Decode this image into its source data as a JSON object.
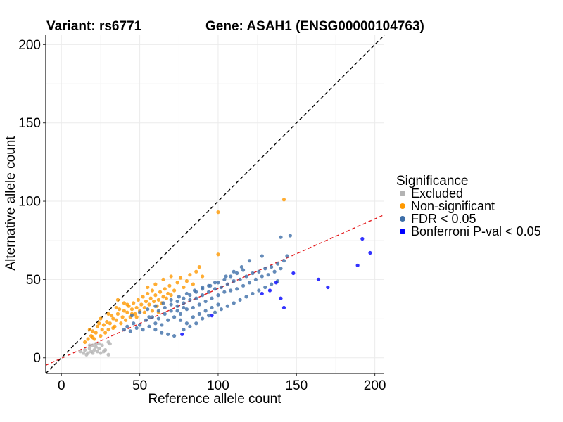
{
  "chart_data": {
    "type": "scatter",
    "title_left": "Variant: rs6771",
    "title_right": "Gene: ASAH1 (ENSG00000104763)",
    "xlabel": "Reference allele count",
    "ylabel": "Alternative allele count",
    "xlim": [
      -10,
      206
    ],
    "ylim": [
      -10,
      206
    ],
    "xticks": [
      0,
      50,
      100,
      150,
      200
    ],
    "yticks": [
      0,
      50,
      100,
      150,
      200
    ],
    "grid": true,
    "legend": {
      "title": "Significance",
      "placement": "right",
      "entries": [
        {
          "label": "Excluded",
          "color": "#b3b3b3"
        },
        {
          "label": "Non-significant",
          "color": "#ff9900"
        },
        {
          "label": "FDR < 0.05",
          "color": "#3d6ea8"
        },
        {
          "label": "Bonferroni P-val < 0.05",
          "color": "#0000ff"
        }
      ]
    },
    "reference_lines": [
      {
        "name": "identity",
        "slope": 1,
        "intercept": 0,
        "color": "#000000",
        "dash": "dashed"
      },
      {
        "name": "fit",
        "slope": 0.445,
        "intercept": -0.3,
        "color": "#e41a1c",
        "dash": "dashed"
      }
    ],
    "series": [
      {
        "name": "Excluded",
        "color": "#b3b3b3",
        "points": [
          [
            12,
            4
          ],
          [
            14,
            3
          ],
          [
            15,
            5
          ],
          [
            16,
            2
          ],
          [
            17,
            3
          ],
          [
            18,
            6
          ],
          [
            19,
            4
          ],
          [
            20,
            3
          ],
          [
            21,
            5
          ],
          [
            22,
            7
          ],
          [
            23,
            4
          ],
          [
            24,
            6
          ],
          [
            25,
            3
          ],
          [
            26,
            8
          ],
          [
            28,
            5
          ],
          [
            30,
            10
          ],
          [
            30,
            2
          ],
          [
            31,
            9
          ],
          [
            18,
            8
          ],
          [
            20,
            8
          ],
          [
            22,
            9
          ],
          [
            24,
            9
          ],
          [
            27,
            4
          ]
        ]
      },
      {
        "name": "Non-significant",
        "color": "#ff9900",
        "points": [
          [
            15,
            10
          ],
          [
            17,
            12
          ],
          [
            18,
            18
          ],
          [
            19,
            14
          ],
          [
            20,
            13
          ],
          [
            21,
            12
          ],
          [
            22,
            16
          ],
          [
            23,
            20
          ],
          [
            24,
            22
          ],
          [
            25,
            14
          ],
          [
            26,
            18
          ],
          [
            27,
            21
          ],
          [
            28,
            16
          ],
          [
            29,
            23
          ],
          [
            30,
            18
          ],
          [
            31,
            22
          ],
          [
            32,
            27
          ],
          [
            33,
            25
          ],
          [
            34,
            20
          ],
          [
            35,
            24
          ],
          [
            36,
            28
          ],
          [
            37,
            31
          ],
          [
            38,
            22
          ],
          [
            39,
            26
          ],
          [
            40,
            30
          ],
          [
            41,
            24
          ],
          [
            42,
            29
          ],
          [
            43,
            33
          ],
          [
            44,
            26
          ],
          [
            45,
            31
          ],
          [
            46,
            35
          ],
          [
            47,
            28
          ],
          [
            48,
            32
          ],
          [
            49,
            37
          ],
          [
            50,
            30
          ],
          [
            51,
            34
          ],
          [
            52,
            39
          ],
          [
            53,
            32
          ],
          [
            54,
            36
          ],
          [
            55,
            41
          ],
          [
            56,
            34
          ],
          [
            57,
            38
          ],
          [
            58,
            43
          ],
          [
            59,
            36
          ],
          [
            60,
            40
          ],
          [
            61,
            33
          ],
          [
            62,
            37
          ],
          [
            63,
            42
          ],
          [
            64,
            35
          ],
          [
            65,
            39
          ],
          [
            66,
            44
          ],
          [
            67,
            38
          ],
          [
            68,
            41
          ],
          [
            69,
            46
          ],
          [
            70,
            40
          ],
          [
            72,
            43
          ],
          [
            74,
            48
          ],
          [
            76,
            51
          ],
          [
            78,
            45
          ],
          [
            80,
            49
          ],
          [
            82,
            53
          ],
          [
            84,
            47
          ],
          [
            86,
            55
          ],
          [
            88,
            58
          ],
          [
            90,
            52
          ],
          [
            36,
            37
          ],
          [
            40,
            35
          ],
          [
            45,
            28
          ],
          [
            55,
            45
          ],
          [
            60,
            47
          ],
          [
            65,
            50
          ],
          [
            70,
            52
          ],
          [
            100,
            93
          ],
          [
            100,
            66
          ],
          [
            142,
            101
          ],
          [
            35,
            32
          ],
          [
            42,
            34
          ],
          [
            48,
            26
          ],
          [
            53,
            29
          ],
          [
            58,
            30
          ],
          [
            62,
            29
          ],
          [
            25,
            25
          ],
          [
            30,
            28
          ],
          [
            20,
            17
          ],
          [
            33,
            19
          ]
        ]
      },
      {
        "name": "FDR < 0.05",
        "color": "#3d6ea8",
        "points": [
          [
            40,
            18
          ],
          [
            42,
            20
          ],
          [
            44,
            17
          ],
          [
            46,
            22
          ],
          [
            48,
            19
          ],
          [
            50,
            21
          ],
          [
            52,
            18
          ],
          [
            54,
            24
          ],
          [
            56,
            20
          ],
          [
            58,
            26
          ],
          [
            60,
            22
          ],
          [
            62,
            25
          ],
          [
            64,
            21
          ],
          [
            66,
            28
          ],
          [
            68,
            24
          ],
          [
            70,
            30
          ],
          [
            72,
            26
          ],
          [
            74,
            33
          ],
          [
            76,
            28
          ],
          [
            78,
            35
          ],
          [
            80,
            31
          ],
          [
            82,
            37
          ],
          [
            84,
            32
          ],
          [
            86,
            38
          ],
          [
            88,
            34
          ],
          [
            90,
            40
          ],
          [
            92,
            36
          ],
          [
            94,
            42
          ],
          [
            96,
            38
          ],
          [
            98,
            44
          ],
          [
            100,
            40
          ],
          [
            102,
            45
          ],
          [
            104,
            42
          ],
          [
            106,
            47
          ],
          [
            108,
            43
          ],
          [
            110,
            49
          ],
          [
            112,
            44
          ],
          [
            114,
            50
          ],
          [
            116,
            46
          ],
          [
            118,
            52
          ],
          [
            120,
            48
          ],
          [
            122,
            54
          ],
          [
            124,
            50
          ],
          [
            126,
            55
          ],
          [
            128,
            52
          ],
          [
            130,
            57
          ],
          [
            132,
            53
          ],
          [
            134,
            58
          ],
          [
            136,
            55
          ],
          [
            138,
            60
          ],
          [
            140,
            57
          ],
          [
            142,
            62
          ],
          [
            144,
            65
          ],
          [
            146,
            78
          ],
          [
            140,
            77
          ],
          [
            128,
            65
          ],
          [
            120,
            62
          ],
          [
            115,
            58
          ],
          [
            110,
            55
          ],
          [
            105,
            52
          ],
          [
            100,
            48
          ],
          [
            95,
            46
          ],
          [
            90,
            45
          ],
          [
            85,
            43
          ],
          [
            80,
            41
          ],
          [
            75,
            39
          ],
          [
            70,
            37
          ],
          [
            65,
            35
          ],
          [
            60,
            33
          ],
          [
            55,
            31
          ],
          [
            50,
            29
          ],
          [
            45,
            27
          ],
          [
            60,
            18
          ],
          [
            64,
            16
          ],
          [
            68,
            15
          ],
          [
            72,
            14
          ],
          [
            78,
            18
          ],
          [
            82,
            20
          ],
          [
            86,
            22
          ],
          [
            90,
            25
          ],
          [
            94,
            27
          ],
          [
            98,
            29
          ],
          [
            102,
            31
          ],
          [
            106,
            33
          ],
          [
            110,
            35
          ],
          [
            114,
            37
          ],
          [
            118,
            39
          ],
          [
            122,
            41
          ],
          [
            126,
            43
          ],
          [
            130,
            45
          ],
          [
            134,
            47
          ],
          [
            138,
            49
          ],
          [
            62,
            30
          ],
          [
            66,
            32
          ],
          [
            70,
            34
          ],
          [
            74,
            36
          ],
          [
            78,
            38
          ],
          [
            82,
            40
          ],
          [
            86,
            42
          ],
          [
            90,
            44
          ],
          [
            94,
            46
          ],
          [
            98,
            48
          ],
          [
            104,
            50
          ],
          [
            108,
            52
          ],
          [
            112,
            54
          ],
          [
            116,
            56
          ],
          [
            56,
            26
          ],
          [
            76,
            24
          ],
          [
            80,
            22
          ],
          [
            84,
            26
          ],
          [
            88,
            28
          ],
          [
            92,
            30
          ],
          [
            96,
            32
          ],
          [
            100,
            34
          ],
          [
            74,
            30
          ],
          [
            78,
            32
          ]
        ]
      },
      {
        "name": "Bonferroni P-val < 0.05",
        "color": "#0000ff",
        "points": [
          [
            77,
            15
          ],
          [
            96,
            27
          ],
          [
            128,
            41
          ],
          [
            133,
            43
          ],
          [
            137,
            48
          ],
          [
            140,
            38
          ],
          [
            142,
            32
          ],
          [
            148,
            54
          ],
          [
            164,
            50
          ],
          [
            170,
            45
          ],
          [
            189,
            59
          ],
          [
            192,
            76
          ],
          [
            197,
            67
          ]
        ]
      }
    ]
  }
}
